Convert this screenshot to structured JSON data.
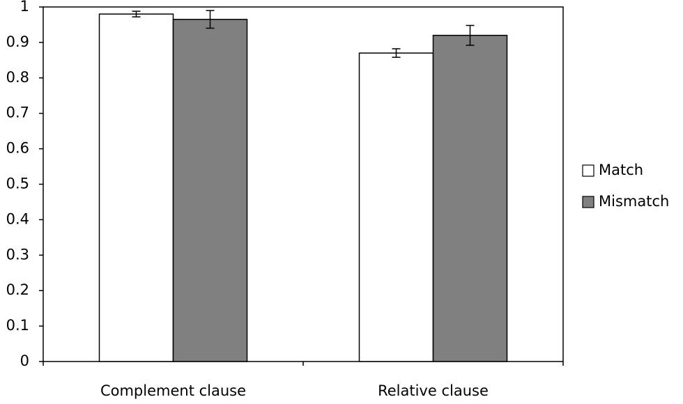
{
  "chart_data": {
    "type": "bar",
    "categories": [
      "Complement clause",
      "Relative clause"
    ],
    "series": [
      {
        "name": "Match",
        "color": "#ffffff",
        "values": [
          0.98,
          0.87
        ],
        "errors": [
          0.008,
          0.012
        ]
      },
      {
        "name": "Mismatch",
        "color": "#808080",
        "values": [
          0.965,
          0.92
        ],
        "errors": [
          0.025,
          0.028
        ]
      }
    ],
    "ylim": [
      0,
      1
    ],
    "yticks": [
      0,
      0.1,
      0.2,
      0.3,
      0.4,
      0.5,
      0.6,
      0.7,
      0.8,
      0.9,
      1
    ],
    "grid": false,
    "legend": "right"
  }
}
